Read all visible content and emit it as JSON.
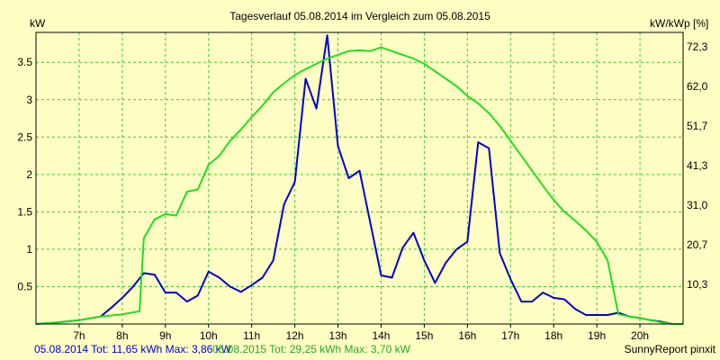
{
  "chart_data": {
    "type": "line",
    "title": "Tagesverlauf 05.08.2014 im Vergleich zum 05.08.2015",
    "ylabel_left": "kW",
    "ylabel_right": "kW/kWp [%]",
    "xlim": [
      6.0,
      21.0
    ],
    "ylim_left": [
      0,
      3.9
    ],
    "x_ticks": [
      {
        "x": 7,
        "label": "7h"
      },
      {
        "x": 8,
        "label": "8h"
      },
      {
        "x": 9,
        "label": "9h"
      },
      {
        "x": 10,
        "label": "10h"
      },
      {
        "x": 11,
        "label": "11h"
      },
      {
        "x": 12,
        "label": "12h"
      },
      {
        "x": 13,
        "label": "13h"
      },
      {
        "x": 14,
        "label": "14h"
      },
      {
        "x": 15,
        "label": "15h"
      },
      {
        "x": 16,
        "label": "16h"
      },
      {
        "x": 17,
        "label": "17h"
      },
      {
        "x": 18,
        "label": "18h"
      },
      {
        "x": 19,
        "label": "19h"
      },
      {
        "x": 20,
        "label": "20h"
      }
    ],
    "y_ticks_left": [
      {
        "v": 0.5,
        "label": "0.5"
      },
      {
        "v": 1,
        "label": "1"
      },
      {
        "v": 1.5,
        "label": "1.5"
      },
      {
        "v": 2,
        "label": "2"
      },
      {
        "v": 2.5,
        "label": "2.5"
      },
      {
        "v": 3,
        "label": "3"
      },
      {
        "v": 3.5,
        "label": "3.5"
      }
    ],
    "y_ticks_right": [
      {
        "v": 0.53,
        "label": "10,3"
      },
      {
        "v": 1.06,
        "label": "20,7"
      },
      {
        "v": 1.59,
        "label": "31,0"
      },
      {
        "v": 2.12,
        "label": "41,3"
      },
      {
        "v": 2.65,
        "label": "51,7"
      },
      {
        "v": 3.18,
        "label": "62,0"
      },
      {
        "v": 3.71,
        "label": "72,3"
      }
    ],
    "grid": true,
    "series": [
      {
        "name": "05.08.2014",
        "color": "#0000cc",
        "x": [
          6.0,
          6.5,
          7.0,
          7.5,
          7.75,
          8.0,
          8.25,
          8.5,
          8.75,
          9.0,
          9.25,
          9.5,
          9.75,
          10.0,
          10.25,
          10.5,
          10.75,
          11.0,
          11.25,
          11.5,
          11.75,
          12.0,
          12.25,
          12.5,
          12.75,
          13.0,
          13.25,
          13.5,
          13.75,
          14.0,
          14.25,
          14.5,
          14.75,
          15.0,
          15.25,
          15.5,
          15.75,
          16.0,
          16.25,
          16.5,
          16.75,
          17.0,
          17.25,
          17.5,
          17.75,
          18.0,
          18.25,
          18.5,
          18.75,
          19.0,
          19.25,
          19.5,
          19.75,
          20.0,
          20.25,
          20.5,
          20.75,
          21.0
        ],
        "values": [
          0.0,
          0.02,
          0.05,
          0.1,
          0.22,
          0.35,
          0.5,
          0.68,
          0.66,
          0.42,
          0.42,
          0.3,
          0.38,
          0.7,
          0.62,
          0.5,
          0.43,
          0.52,
          0.62,
          0.85,
          1.6,
          1.9,
          3.28,
          2.88,
          3.86,
          2.38,
          1.95,
          2.05,
          1.35,
          0.65,
          0.62,
          1.02,
          1.22,
          0.85,
          0.55,
          0.82,
          1.0,
          1.1,
          2.43,
          2.35,
          0.95,
          0.6,
          0.3,
          0.3,
          0.42,
          0.35,
          0.33,
          0.2,
          0.12,
          0.12,
          0.12,
          0.15,
          0.1,
          0.08,
          0.05,
          0.03,
          0.0,
          0.0
        ]
      },
      {
        "name": "05.08.2015",
        "color": "#22dd22",
        "x": [
          6.0,
          6.5,
          7.0,
          7.5,
          8.0,
          8.4,
          8.5,
          8.75,
          9.0,
          9.25,
          9.5,
          9.75,
          10.0,
          10.25,
          10.5,
          10.75,
          11.0,
          11.25,
          11.5,
          11.75,
          12.0,
          12.25,
          12.5,
          12.75,
          13.0,
          13.25,
          13.5,
          13.75,
          14.0,
          14.25,
          14.5,
          14.75,
          15.0,
          15.25,
          15.5,
          15.75,
          16.0,
          16.25,
          16.5,
          16.75,
          17.0,
          17.25,
          17.5,
          17.75,
          18.0,
          18.25,
          18.5,
          18.75,
          19.0,
          19.25,
          19.5,
          19.75,
          20.0,
          20.25,
          20.5,
          20.75,
          21.0
        ],
        "values": [
          0.0,
          0.02,
          0.05,
          0.1,
          0.13,
          0.17,
          1.15,
          1.4,
          1.47,
          1.45,
          1.77,
          1.8,
          2.13,
          2.25,
          2.45,
          2.6,
          2.77,
          2.92,
          3.1,
          3.22,
          3.33,
          3.41,
          3.48,
          3.55,
          3.6,
          3.65,
          3.66,
          3.65,
          3.7,
          3.65,
          3.6,
          3.55,
          3.48,
          3.38,
          3.28,
          3.18,
          3.05,
          2.95,
          2.82,
          2.65,
          2.45,
          2.25,
          2.05,
          1.85,
          1.66,
          1.5,
          1.38,
          1.25,
          1.1,
          0.85,
          0.13,
          0.1,
          0.08,
          0.05,
          0.02,
          0.0,
          0.0
        ]
      }
    ]
  },
  "legend": {
    "entry_2014": "05.08.2014 Tot: 11,65 kWh Max: 3,86 kW",
    "entry_2015": "05.08.2015 Tot: 29,25 kWh Max: 3,70 kW",
    "color_2014": "#0000cc",
    "color_2015": "#22dd22"
  },
  "footer": {
    "brand": "SunnyReport pinxit"
  }
}
